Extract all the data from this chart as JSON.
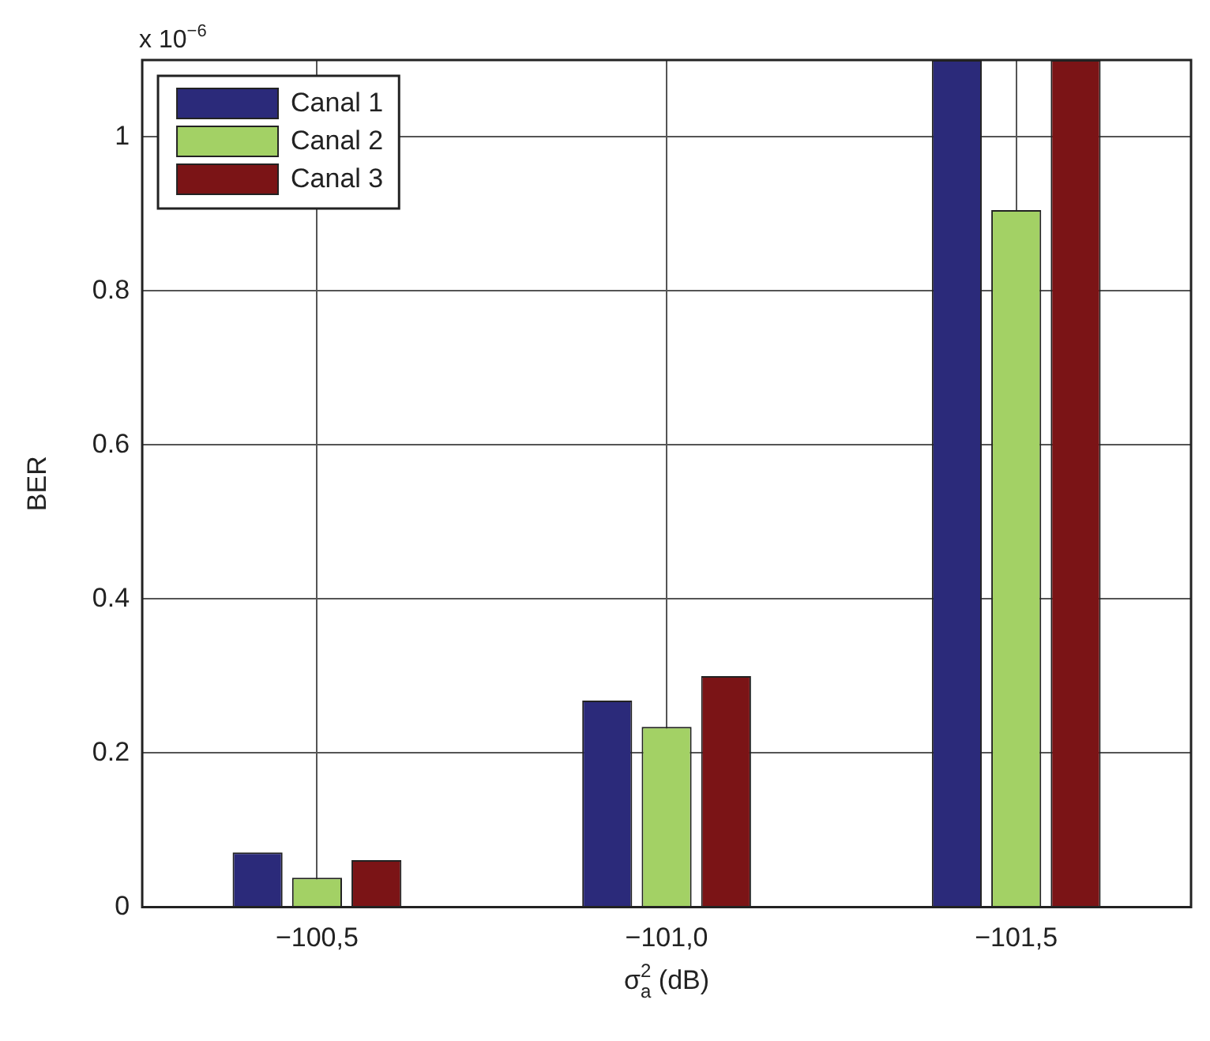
{
  "chart_data": {
    "type": "bar",
    "xlabel": "σ$_{a}$$^{2}$ (dB)",
    "ylabel": "BER",
    "annotations": [
      "x 10$^{−6}$"
    ],
    "categories": [
      "−100,5",
      "−101,0",
      "−101,5"
    ],
    "series": [
      {
        "name": "Canal 1",
        "color": "#2b2a7a",
        "values": [
          0.071,
          0.268,
          1.1
        ]
      },
      {
        "name": "Canal 2",
        "color": "#a3d165",
        "values": [
          0.038,
          0.234,
          0.905
        ]
      },
      {
        "name": "Canal 3",
        "color": "#7b1416",
        "values": [
          0.061,
          0.3,
          1.1
        ]
      }
    ],
    "ylim": [
      0,
      1.1
    ],
    "yticks": [
      0,
      0.2,
      0.4,
      0.6,
      0.8,
      1
    ],
    "grid": true,
    "legend": "top left"
  }
}
